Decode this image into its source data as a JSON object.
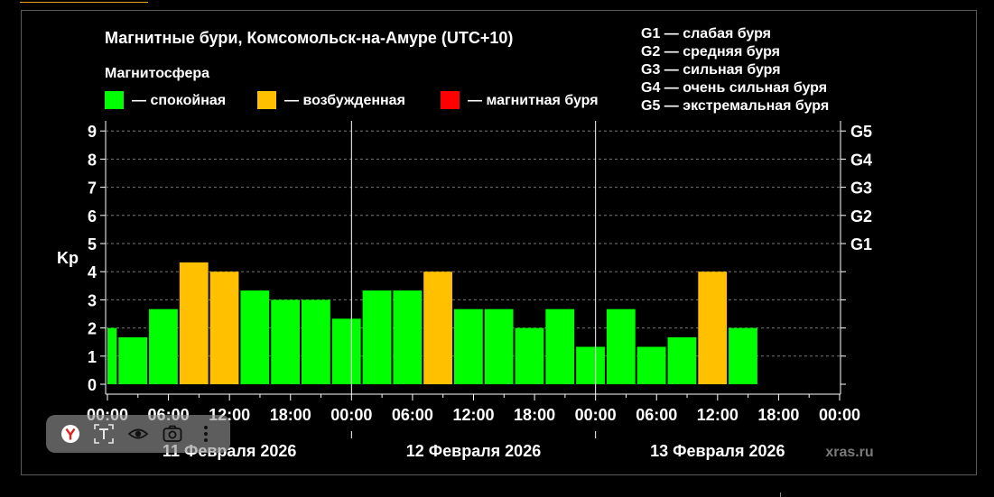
{
  "chart_data": {
    "type": "bar",
    "title": "Магнитные бури, Комсомольск-на-Амуре (UTC+10)",
    "legend_title": "Магнитосфера",
    "legend": [
      {
        "label": "— спокойная",
        "color": "#00ff00"
      },
      {
        "label": "— возбужденная",
        "color": "#ffc000"
      },
      {
        "label": "— магнитная буря",
        "color": "#ff0000"
      }
    ],
    "storm_levels": [
      {
        "code": "G1",
        "desc": "— слабая буря",
        "kp": 5
      },
      {
        "code": "G2",
        "desc": "— средняя буря",
        "kp": 6
      },
      {
        "code": "G3",
        "desc": "— сильная буря",
        "kp": 7
      },
      {
        "code": "G4",
        "desc": "— очень сильная буря",
        "kp": 8
      },
      {
        "code": "G5",
        "desc": "— экстремальная буря",
        "kp": 9
      }
    ],
    "ylabel": "Kp",
    "ylim": [
      0,
      9
    ],
    "yticks": [
      "0",
      "1",
      "2",
      "3",
      "4",
      "5",
      "6",
      "7",
      "8",
      "9"
    ],
    "grid": true,
    "x_tick_labels": [
      "00:00",
      "06:00",
      "12:00",
      "18:00",
      "00:00",
      "06:00",
      "12:00",
      "18:00",
      "00:00",
      "06:00",
      "12:00",
      "18:00",
      "00:00"
    ],
    "days": [
      "11 Февраля 2026",
      "12 Февраля 2026",
      "13 Февраля 2026"
    ],
    "colors": {
      "quiet": "#00ff00",
      "active": "#ffc000",
      "storm": "#ff0000"
    },
    "bars": [
      {
        "start_hour": 0,
        "end_hour": 1,
        "kp": 2.0,
        "state": "quiet"
      },
      {
        "start_hour": 1,
        "end_hour": 4,
        "kp": 1.67,
        "state": "quiet"
      },
      {
        "start_hour": 4,
        "end_hour": 7,
        "kp": 2.67,
        "state": "quiet"
      },
      {
        "start_hour": 7,
        "end_hour": 10,
        "kp": 4.33,
        "state": "active"
      },
      {
        "start_hour": 10,
        "end_hour": 13,
        "kp": 4.0,
        "state": "active"
      },
      {
        "start_hour": 13,
        "end_hour": 16,
        "kp": 3.33,
        "state": "quiet"
      },
      {
        "start_hour": 16,
        "end_hour": 19,
        "kp": 3.0,
        "state": "quiet"
      },
      {
        "start_hour": 19,
        "end_hour": 22,
        "kp": 3.0,
        "state": "quiet"
      },
      {
        "start_hour": 22,
        "end_hour": 25,
        "kp": 2.33,
        "state": "quiet"
      },
      {
        "start_hour": 25,
        "end_hour": 28,
        "kp": 3.33,
        "state": "quiet"
      },
      {
        "start_hour": 28,
        "end_hour": 31,
        "kp": 3.33,
        "state": "quiet"
      },
      {
        "start_hour": 31,
        "end_hour": 34,
        "kp": 4.0,
        "state": "active"
      },
      {
        "start_hour": 34,
        "end_hour": 37,
        "kp": 2.67,
        "state": "quiet"
      },
      {
        "start_hour": 37,
        "end_hour": 40,
        "kp": 2.67,
        "state": "quiet"
      },
      {
        "start_hour": 40,
        "end_hour": 43,
        "kp": 2.0,
        "state": "quiet"
      },
      {
        "start_hour": 43,
        "end_hour": 46,
        "kp": 2.67,
        "state": "quiet"
      },
      {
        "start_hour": 46,
        "end_hour": 49,
        "kp": 1.33,
        "state": "quiet"
      },
      {
        "start_hour": 49,
        "end_hour": 52,
        "kp": 2.67,
        "state": "quiet"
      },
      {
        "start_hour": 52,
        "end_hour": 55,
        "kp": 1.33,
        "state": "quiet"
      },
      {
        "start_hour": 55,
        "end_hour": 58,
        "kp": 1.67,
        "state": "quiet"
      },
      {
        "start_hour": 58,
        "end_hour": 61,
        "kp": 4.0,
        "state": "active"
      },
      {
        "start_hour": 61,
        "end_hour": 64,
        "kp": 2.0,
        "state": "quiet"
      }
    ],
    "x_range_hours": [
      0,
      72
    ],
    "watermark": "xras.ru"
  },
  "toolbar": {
    "items": [
      {
        "name": "yandex-icon",
        "glyph": "Y"
      },
      {
        "name": "text-select-icon",
        "glyph": "T"
      },
      {
        "name": "eye-icon",
        "glyph": ""
      },
      {
        "name": "camera-icon",
        "glyph": ""
      },
      {
        "name": "more-icon",
        "glyph": "⋮"
      }
    ]
  }
}
